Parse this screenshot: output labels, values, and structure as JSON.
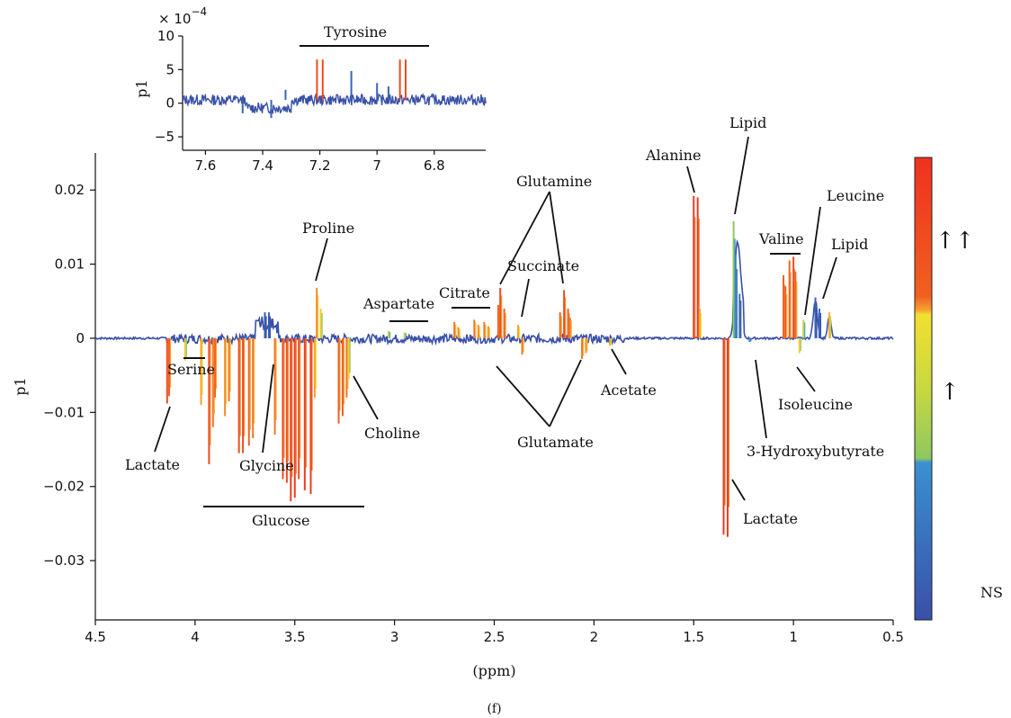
{
  "chart_data": [
    {
      "type": "line",
      "id": "main",
      "xlabel": "(ppm)",
      "ylabel": "p1",
      "caption": "(f)",
      "xlim": [
        4.5,
        0.5
      ],
      "ylim": [
        -0.038,
        0.025
      ],
      "x_ticks": [
        4.5,
        4,
        3.5,
        3,
        2.5,
        2,
        1.5,
        1,
        0.5
      ],
      "x_tick_labels": [
        "4.5",
        "4",
        "3.5",
        "3",
        "2.5",
        "2",
        "1.5",
        "1",
        "0.5"
      ],
      "y_ticks": [
        0.02,
        0.01,
        0,
        -0.01,
        -0.02,
        -0.03
      ],
      "y_tick_labels": [
        "0.02",
        "0.01",
        "0",
        "−0.01",
        "−0.02",
        "−0.03"
      ],
      "peaks": [
        {
          "x": 4.14,
          "y": -0.0088,
          "c": 0.9
        },
        {
          "x": 4.13,
          "y": -0.0078,
          "c": 0.85
        },
        {
          "x": 4.05,
          "y": -0.003,
          "c": 0.6
        },
        {
          "x": 3.97,
          "y": -0.009,
          "c": 0.7
        },
        {
          "x": 3.93,
          "y": -0.017,
          "c": 0.9
        },
        {
          "x": 3.91,
          "y": -0.012,
          "c": 0.8
        },
        {
          "x": 3.9,
          "y": -0.008,
          "c": 0.85
        },
        {
          "x": 3.85,
          "y": -0.0105,
          "c": 0.75
        },
        {
          "x": 3.83,
          "y": -0.0085,
          "c": 0.8
        },
        {
          "x": 3.78,
          "y": -0.0155,
          "c": 0.9
        },
        {
          "x": 3.76,
          "y": -0.0155,
          "c": 0.9
        },
        {
          "x": 3.73,
          "y": -0.0145,
          "c": 0.85
        },
        {
          "x": 3.71,
          "y": -0.0135,
          "c": 0.8
        },
        {
          "x": 3.65,
          "y": 0.0035,
          "c": 0.05
        },
        {
          "x": 3.63,
          "y": 0.0035,
          "c": 0.05
        },
        {
          "x": 3.6,
          "y": -0.013,
          "c": 0.8
        },
        {
          "x": 3.56,
          "y": -0.019,
          "c": 0.9
        },
        {
          "x": 3.54,
          "y": -0.0195,
          "c": 0.9
        },
        {
          "x": 3.52,
          "y": -0.022,
          "c": 0.95
        },
        {
          "x": 3.5,
          "y": -0.0215,
          "c": 0.95
        },
        {
          "x": 3.48,
          "y": -0.019,
          "c": 0.9
        },
        {
          "x": 3.45,
          "y": -0.0205,
          "c": 0.95
        },
        {
          "x": 3.42,
          "y": -0.021,
          "c": 0.95
        },
        {
          "x": 3.4,
          "y": -0.008,
          "c": 0.7
        },
        {
          "x": 3.39,
          "y": 0.0068,
          "c": 0.75
        },
        {
          "x": 3.37,
          "y": 0.004,
          "c": 0.6
        },
        {
          "x": 3.28,
          "y": -0.0115,
          "c": 0.85
        },
        {
          "x": 3.26,
          "y": -0.0105,
          "c": 0.85
        },
        {
          "x": 3.24,
          "y": -0.008,
          "c": 0.8
        },
        {
          "x": 3.23,
          "y": -0.0055,
          "c": 0.6
        },
        {
          "x": 3.03,
          "y": 0.001,
          "c": 0.5
        },
        {
          "x": 2.95,
          "y": 0.0008,
          "c": 0.5
        },
        {
          "x": 2.7,
          "y": 0.0022,
          "c": 0.8
        },
        {
          "x": 2.68,
          "y": 0.0015,
          "c": 0.75
        },
        {
          "x": 2.6,
          "y": 0.0025,
          "c": 0.8
        },
        {
          "x": 2.58,
          "y": 0.0018,
          "c": 0.75
        },
        {
          "x": 2.55,
          "y": 0.0022,
          "c": 0.8
        },
        {
          "x": 2.53,
          "y": 0.0016,
          "c": 0.75
        },
        {
          "x": 2.48,
          "y": 0.0045,
          "c": 0.85
        },
        {
          "x": 2.47,
          "y": 0.0068,
          "c": 0.9
        },
        {
          "x": 2.45,
          "y": 0.004,
          "c": 0.85
        },
        {
          "x": 2.38,
          "y": 0.0018,
          "c": 0.7
        },
        {
          "x": 2.36,
          "y": -0.0022,
          "c": 0.8
        },
        {
          "x": 2.17,
          "y": 0.0035,
          "c": 0.85
        },
        {
          "x": 2.15,
          "y": 0.0065,
          "c": 0.9
        },
        {
          "x": 2.13,
          "y": 0.004,
          "c": 0.85
        },
        {
          "x": 2.12,
          "y": 0.0028,
          "c": 0.8
        },
        {
          "x": 2.06,
          "y": -0.0028,
          "c": 0.8
        },
        {
          "x": 2.04,
          "y": -0.002,
          "c": 0.75
        },
        {
          "x": 1.92,
          "y": -0.001,
          "c": 0.7
        },
        {
          "x": 1.5,
          "y": 0.0192,
          "c": 0.95
        },
        {
          "x": 1.48,
          "y": 0.019,
          "c": 0.95
        },
        {
          "x": 1.47,
          "y": 0.004,
          "c": 0.7
        },
        {
          "x": 1.35,
          "y": -0.0265,
          "c": 0.95
        },
        {
          "x": 1.33,
          "y": -0.0268,
          "c": 0.95
        },
        {
          "x": 1.3,
          "y": 0.0158,
          "c": 0.45
        },
        {
          "x": 1.29,
          "y": 0.011,
          "c": 0.25
        },
        {
          "x": 1.27,
          "y": 0.006,
          "c": 0.15
        },
        {
          "x": 1.22,
          "y": -0.0005,
          "c": 0.3
        },
        {
          "x": 1.05,
          "y": 0.0085,
          "c": 0.85
        },
        {
          "x": 1.04,
          "y": 0.007,
          "c": 0.85
        },
        {
          "x": 1.02,
          "y": 0.0105,
          "c": 0.85
        },
        {
          "x": 1.0,
          "y": 0.011,
          "c": 0.9
        },
        {
          "x": 0.99,
          "y": 0.009,
          "c": 0.85
        },
        {
          "x": 0.97,
          "y": -0.002,
          "c": 0.6
        },
        {
          "x": 0.95,
          "y": 0.0025,
          "c": 0.5
        },
        {
          "x": 0.89,
          "y": 0.0055,
          "c": 0.1
        },
        {
          "x": 0.87,
          "y": 0.004,
          "c": 0.1
        },
        {
          "x": 0.82,
          "y": 0.0035,
          "c": 0.65
        }
      ],
      "color_scale": {
        "stops": [
          "#f03020",
          "#f06020",
          "#f7a030",
          "#f0e030",
          "#8ec860",
          "#3090d0",
          "#3a50a8"
        ],
        "ticks": [
          "↑↑",
          "↑",
          "NS"
        ]
      },
      "title_bar_annotations": [
        {
          "label": "Serine"
        },
        {
          "label": "Glucose"
        },
        {
          "label": "Aspartate"
        },
        {
          "label": "Citrate"
        },
        {
          "label": "Valine"
        }
      ],
      "annotations": [
        "Lactate",
        "Serine",
        "Glycine",
        "Glucose",
        "Proline",
        "Choline",
        "Aspartate",
        "Citrate",
        "Glutamine",
        "Succinate",
        "Glutamate",
        "Acetate",
        "Alanine",
        "Lipid",
        "Lactate",
        "3-Hydroxybutyrate",
        "Isoleucine",
        "Valine",
        "Leucine",
        "Lipid"
      ]
    },
    {
      "type": "line",
      "id": "inset",
      "title": "Tyrosine",
      "ylabel": "p1",
      "y_scale_label": "× 10",
      "y_scale_exp": "−4",
      "xlim": [
        7.68,
        6.62
      ],
      "ylim": [
        -7,
        10
      ],
      "x_ticks": [
        7.6,
        7.4,
        7.2,
        7,
        6.8
      ],
      "x_tick_labels": [
        "7.6",
        "7.4",
        "7.2",
        "7",
        "6.8"
      ],
      "y_ticks": [
        10,
        5,
        0,
        -5
      ],
      "y_tick_labels": [
        "10",
        "5",
        "0",
        "−5"
      ],
      "peaks": [
        {
          "x": 7.21,
          "y": 6.5,
          "c": 0.9
        },
        {
          "x": 7.19,
          "y": 6.5,
          "c": 0.9
        },
        {
          "x": 7.09,
          "y": 4.8,
          "c": 0.1
        },
        {
          "x": 6.92,
          "y": 6.5,
          "c": 0.9
        },
        {
          "x": 6.9,
          "y": 6.5,
          "c": 0.9
        },
        {
          "x": 7.0,
          "y": 3.0,
          "c": 0.1
        },
        {
          "x": 7.32,
          "y": 2.0,
          "c": 0.1
        },
        {
          "x": 7.37,
          "y": -2.2,
          "c": 0.1
        },
        {
          "x": 7.47,
          "y": -1.5,
          "c": 0.1
        },
        {
          "x": 6.96,
          "y": 2.5,
          "c": 0.1
        }
      ]
    }
  ]
}
